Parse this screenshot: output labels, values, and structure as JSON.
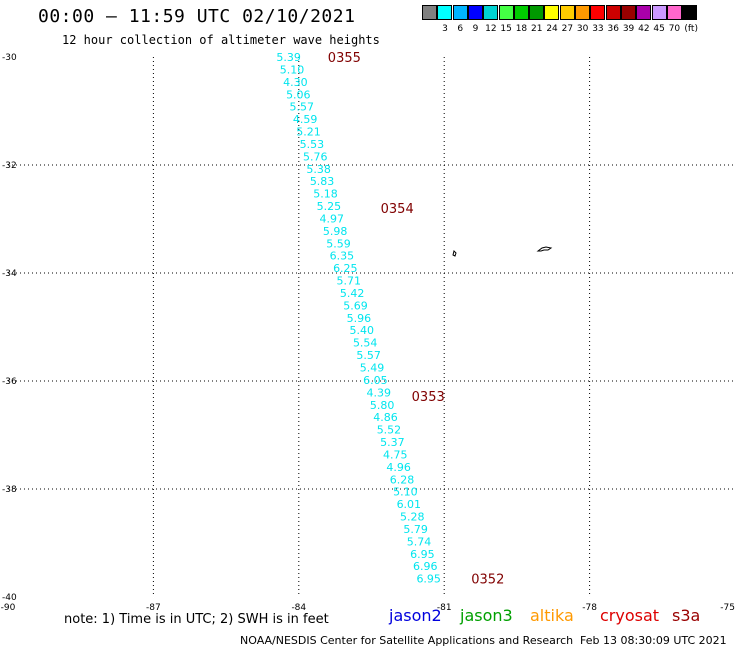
{
  "header": {
    "title": "00:00 – 11:59 UTC 02/10/2021",
    "subtitle": "12 hour collection of altimeter wave heights"
  },
  "legend": {
    "units": "(ft)",
    "colors": [
      {
        "color": "#808080",
        "label": ""
      },
      {
        "color": "#00ffff",
        "label": "3"
      },
      {
        "color": "#00b4ff",
        "label": "6"
      },
      {
        "color": "#0000ff",
        "label": "9"
      },
      {
        "color": "#00d2d2",
        "label": "12"
      },
      {
        "color": "#44ff44",
        "label": "15"
      },
      {
        "color": "#00cc00",
        "label": "18"
      },
      {
        "color": "#009900",
        "label": "21"
      },
      {
        "color": "#ffff00",
        "label": "24"
      },
      {
        "color": "#ffcc00",
        "label": "27"
      },
      {
        "color": "#ff9900",
        "label": "30"
      },
      {
        "color": "#ff0000",
        "label": "33"
      },
      {
        "color": "#cc0000",
        "label": "36"
      },
      {
        "color": "#990000",
        "label": "39"
      },
      {
        "color": "#aa00aa",
        "label": "42"
      },
      {
        "color": "#cc99ff",
        "label": "45"
      },
      {
        "color": "#ff66cc",
        "label": "70"
      },
      {
        "color": "#000000",
        "label": ""
      }
    ]
  },
  "axes": {
    "lon_range": [
      -90,
      -75
    ],
    "lat_range": [
      -40,
      -30
    ],
    "lon_ticks": [
      "-90",
      "-87",
      "-84",
      "-81",
      "-78",
      "-75"
    ],
    "lat_ticks": [
      "-30",
      "-32",
      "-34",
      "-36",
      "-38",
      "-40"
    ]
  },
  "track_color": "#00e5ee",
  "time_color": "#800000",
  "track": [
    {
      "lat": -30.0,
      "lon": -84.21,
      "swh": "5.39"
    },
    {
      "lat": -30.23,
      "lon": -84.14,
      "swh": "5.10"
    },
    {
      "lat": -30.46,
      "lon": -84.07,
      "swh": "4.30"
    },
    {
      "lat": -30.69,
      "lon": -84.01,
      "swh": "5.06"
    },
    {
      "lat": -30.92,
      "lon": -83.94,
      "swh": "5.57"
    },
    {
      "lat": -31.15,
      "lon": -83.87,
      "swh": "4.59"
    },
    {
      "lat": -31.38,
      "lon": -83.8,
      "swh": "5.21"
    },
    {
      "lat": -31.61,
      "lon": -83.73,
      "swh": "5.53"
    },
    {
      "lat": -31.84,
      "lon": -83.66,
      "swh": "5.76"
    },
    {
      "lat": -32.07,
      "lon": -83.59,
      "swh": "5.38"
    },
    {
      "lat": -32.3,
      "lon": -83.52,
      "swh": "5.83"
    },
    {
      "lat": -32.53,
      "lon": -83.45,
      "swh": "5.18"
    },
    {
      "lat": -32.76,
      "lon": -83.38,
      "swh": "5.25"
    },
    {
      "lat": -32.99,
      "lon": -83.32,
      "swh": "4.97"
    },
    {
      "lat": -33.22,
      "lon": -83.25,
      "swh": "5.98"
    },
    {
      "lat": -33.45,
      "lon": -83.18,
      "swh": "5.59"
    },
    {
      "lat": -33.68,
      "lon": -83.11,
      "swh": "6.35"
    },
    {
      "lat": -33.91,
      "lon": -83.04,
      "swh": "6.25"
    },
    {
      "lat": -34.14,
      "lon": -82.97,
      "swh": "5.71"
    },
    {
      "lat": -34.37,
      "lon": -82.9,
      "swh": "5.42"
    },
    {
      "lat": -34.6,
      "lon": -82.83,
      "swh": "5.69"
    },
    {
      "lat": -34.83,
      "lon": -82.76,
      "swh": "5.96"
    },
    {
      "lat": -35.06,
      "lon": -82.7,
      "swh": "5.40"
    },
    {
      "lat": -35.29,
      "lon": -82.63,
      "swh": "5.54"
    },
    {
      "lat": -35.52,
      "lon": -82.56,
      "swh": "5.57"
    },
    {
      "lat": -35.75,
      "lon": -82.49,
      "swh": "5.49"
    },
    {
      "lat": -35.98,
      "lon": -82.42,
      "swh": "6.05"
    },
    {
      "lat": -36.21,
      "lon": -82.35,
      "swh": "4.39"
    },
    {
      "lat": -36.44,
      "lon": -82.28,
      "swh": "5.80"
    },
    {
      "lat": -36.67,
      "lon": -82.21,
      "swh": "4.86"
    },
    {
      "lat": -36.9,
      "lon": -82.14,
      "swh": "5.52"
    },
    {
      "lat": -37.13,
      "lon": -82.07,
      "swh": "5.37"
    },
    {
      "lat": -37.36,
      "lon": -82.01,
      "swh": "4.75"
    },
    {
      "lat": -37.59,
      "lon": -81.94,
      "swh": "4.96"
    },
    {
      "lat": -37.82,
      "lon": -81.87,
      "swh": "6.28"
    },
    {
      "lat": -38.05,
      "lon": -81.8,
      "swh": "5.10"
    },
    {
      "lat": -38.28,
      "lon": -81.73,
      "swh": "6.01"
    },
    {
      "lat": -38.51,
      "lon": -81.66,
      "swh": "5.28"
    },
    {
      "lat": -38.74,
      "lon": -81.59,
      "swh": "5.79"
    },
    {
      "lat": -38.97,
      "lon": -81.52,
      "swh": "5.74"
    },
    {
      "lat": -39.2,
      "lon": -81.45,
      "swh": "6.95"
    },
    {
      "lat": -39.43,
      "lon": -81.39,
      "swh": "6.96"
    },
    {
      "lat": -39.66,
      "lon": -81.32,
      "swh": "6.95"
    }
  ],
  "times": [
    {
      "lat": -30.0,
      "lon": -83.06,
      "label": "0355"
    },
    {
      "lat": -32.8,
      "lon": -81.97,
      "label": "0354"
    },
    {
      "lat": -36.28,
      "lon": -81.33,
      "label": "0353"
    },
    {
      "lat": -39.66,
      "lon": -80.1,
      "label": "0352"
    }
  ],
  "footer": {
    "note": "note: 1) Time is in UTC; 2) SWH is in feet",
    "satellites": [
      {
        "name": "jason2",
        "color": "#0000dd"
      },
      {
        "name": "jason3",
        "color": "#00a000"
      },
      {
        "name": "altika",
        "color": "#ff9900"
      },
      {
        "name": "cryosat",
        "color": "#dd0000"
      },
      {
        "name": "s3a",
        "color": "#990000"
      }
    ],
    "credit": "NOAA/NESDIS Center for Satellite Applications and Research",
    "timestamp": "Feb 13 08:30:09 UTC 2021"
  }
}
